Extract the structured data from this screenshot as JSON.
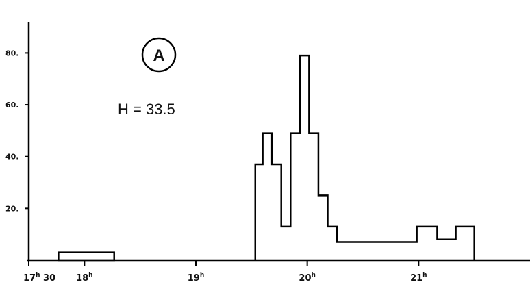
{
  "chart_data": {
    "type": "histogram",
    "panel_label": "A",
    "annotation": "H = 33.5",
    "y_ticks": [
      {
        "value": 20,
        "label": "20."
      },
      {
        "value": 40,
        "label": "40."
      },
      {
        "value": 60,
        "label": "60."
      },
      {
        "value": 80,
        "label": "80."
      }
    ],
    "x_ticks": [
      {
        "value": 1050,
        "main": "17",
        "sup": "h",
        "rest": " 30"
      },
      {
        "value": 1080,
        "main": "18",
        "sup": "h",
        "rest": ""
      },
      {
        "value": 1140,
        "main": "19",
        "sup": "h",
        "rest": ""
      },
      {
        "value": 1200,
        "main": "20",
        "sup": "h",
        "rest": ""
      },
      {
        "value": 1260,
        "main": "21",
        "sup": "h",
        "rest": ""
      }
    ],
    "xlim": [
      1050,
      1320
    ],
    "ylim": [
      0,
      92
    ],
    "low_box": {
      "x_start": 1066,
      "x_end": 1096,
      "value": 3
    },
    "bins": [
      {
        "x_start": 1172,
        "x_end": 1176,
        "value": 37
      },
      {
        "x_start": 1176,
        "x_end": 1181,
        "value": 49
      },
      {
        "x_start": 1181,
        "x_end": 1186,
        "value": 37
      },
      {
        "x_start": 1186,
        "x_end": 1191,
        "value": 13
      },
      {
        "x_start": 1191,
        "x_end": 1196,
        "value": 49
      },
      {
        "x_start": 1196,
        "x_end": 1201,
        "value": 79
      },
      {
        "x_start": 1201,
        "x_end": 1206,
        "value": 49
      },
      {
        "x_start": 1206,
        "x_end": 1211,
        "value": 25
      },
      {
        "x_start": 1211,
        "x_end": 1216,
        "value": 13
      },
      {
        "x_start": 1216,
        "x_end": 1259,
        "value": 7
      },
      {
        "x_start": 1259,
        "x_end": 1270,
        "value": 13
      },
      {
        "x_start": 1270,
        "x_end": 1280,
        "value": 8
      },
      {
        "x_start": 1280,
        "x_end": 1290,
        "value": 13
      }
    ]
  }
}
